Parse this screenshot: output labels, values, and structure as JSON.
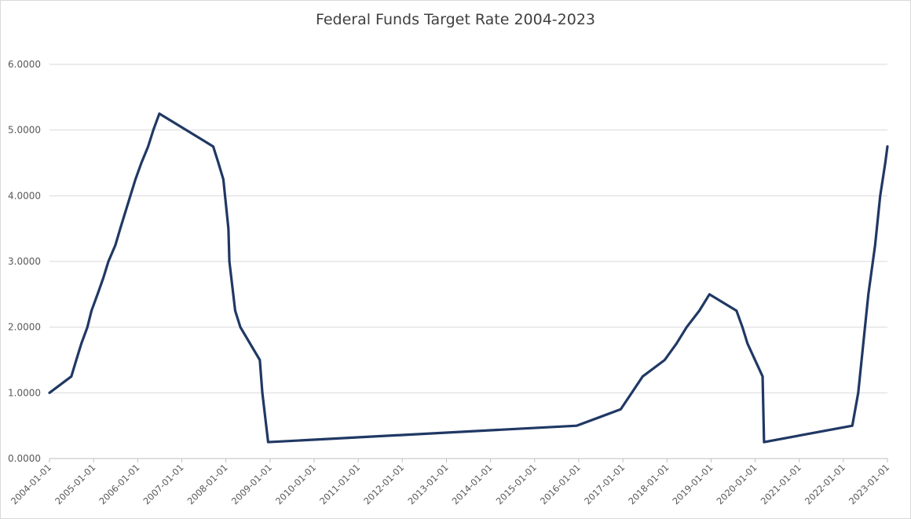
{
  "chart_data": {
    "type": "line",
    "title": "Federal Funds Target Rate 2004-2023",
    "xlabel": "",
    "ylabel": "",
    "ylim": [
      0,
      6
    ],
    "xlim": [
      "2004-01-01",
      "2023-01-01"
    ],
    "grid": true,
    "legend": "none",
    "line_color": "#203864",
    "grid_color": "#d9d9d9",
    "y_ticks": [
      "0.0000",
      "1.0000",
      "2.0000",
      "3.0000",
      "4.0000",
      "5.0000",
      "6.0000"
    ],
    "x_ticks": [
      "2004-01-01",
      "2005-01-01",
      "2006-01-01",
      "2007-01-01",
      "2008-01-01",
      "2009-01-01",
      "2010-01-01",
      "2011-01-01",
      "2012-01-01",
      "2013-01-01",
      "2014-01-01",
      "2015-01-01",
      "2016-01-01",
      "2017-01-01",
      "2018-01-01",
      "2019-01-01",
      "2020-01-01",
      "2021-01-01",
      "2022-01-01",
      "2023-01-01"
    ],
    "series": [
      {
        "x": [
          "2004-01-01",
          "2004-06-30",
          "2004-08-10",
          "2004-09-21",
          "2004-11-10",
          "2004-12-14",
          "2005-02-02",
          "2005-03-22",
          "2005-05-03",
          "2005-06-30",
          "2005-08-09",
          "2005-09-20",
          "2005-11-01",
          "2005-12-13",
          "2006-01-31",
          "2006-03-28",
          "2006-05-10",
          "2006-06-29",
          "2007-09-18",
          "2007-10-31",
          "2007-12-11",
          "2008-01-22",
          "2008-01-30",
          "2008-03-18",
          "2008-04-30",
          "2008-10-08",
          "2008-10-29",
          "2008-12-16",
          "2015-12-16",
          "2016-12-14",
          "2017-03-15",
          "2017-06-14",
          "2017-12-13",
          "2018-03-21",
          "2018-06-13",
          "2018-09-26",
          "2018-12-19",
          "2019-07-31",
          "2019-09-18",
          "2019-10-30",
          "2020-03-03",
          "2020-03-15",
          "2022-03-16",
          "2022-05-04",
          "2022-06-15",
          "2022-07-27",
          "2022-09-21",
          "2022-11-02",
          "2022-12-14",
          "2023-01-01"
        ],
        "values": [
          1.0,
          1.25,
          1.5,
          1.75,
          2.0,
          2.25,
          2.5,
          2.75,
          3.0,
          3.25,
          3.5,
          3.75,
          4.0,
          4.25,
          4.5,
          4.75,
          5.0,
          5.25,
          4.75,
          4.5,
          4.25,
          3.5,
          3.0,
          2.25,
          2.0,
          1.5,
          1.0,
          0.25,
          0.5,
          0.75,
          1.0,
          1.25,
          1.5,
          1.75,
          2.0,
          2.25,
          2.5,
          2.25,
          2.0,
          1.75,
          1.25,
          0.25,
          0.5,
          1.0,
          1.75,
          2.5,
          3.25,
          4.0,
          4.5,
          4.75
        ]
      }
    ]
  }
}
